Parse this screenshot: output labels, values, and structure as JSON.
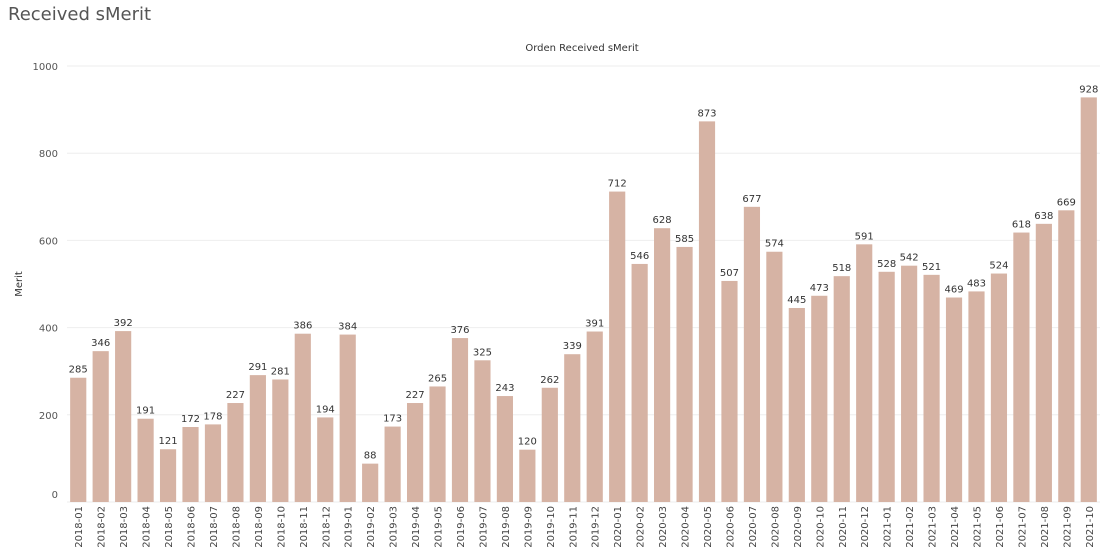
{
  "page": {
    "title": "Received sMerit"
  },
  "colors": {
    "bar": "#d6b3a4",
    "grid": "#eeeeee"
  },
  "chart_data": {
    "type": "bar",
    "title": "Orden Received sMerit",
    "xlabel": "",
    "ylabel": "Merit",
    "ylim": [
      0,
      1000
    ],
    "yticks": [
      0,
      200,
      400,
      600,
      800,
      1000
    ],
    "grid": true,
    "categories": [
      "2018-01",
      "2018-02",
      "2018-03",
      "2018-04",
      "2018-05",
      "2018-06",
      "2018-07",
      "2018-08",
      "2018-09",
      "2018-10",
      "2018-11",
      "2018-12",
      "2019-01",
      "2019-02",
      "2019-03",
      "2019-04",
      "2019-05",
      "2019-06",
      "2019-07",
      "2019-08",
      "2019-09",
      "2019-10",
      "2019-11",
      "2019-12",
      "2020-01",
      "2020-02",
      "2020-03",
      "2020-04",
      "2020-05",
      "2020-06",
      "2020-07",
      "2020-08",
      "2020-09",
      "2020-10",
      "2020-11",
      "2020-12",
      "2021-01",
      "2021-02",
      "2021-03",
      "2021-04",
      "2021-05",
      "2021-06",
      "2021-07",
      "2021-08",
      "2021-09",
      "2021-10"
    ],
    "values": [
      285,
      346,
      392,
      191,
      121,
      172,
      178,
      227,
      291,
      281,
      386,
      194,
      384,
      88,
      173,
      227,
      265,
      376,
      325,
      243,
      120,
      262,
      339,
      391,
      712,
      546,
      628,
      585,
      873,
      507,
      677,
      574,
      445,
      473,
      518,
      591,
      528,
      542,
      521,
      469,
      483,
      524,
      618,
      638,
      669,
      928
    ]
  }
}
